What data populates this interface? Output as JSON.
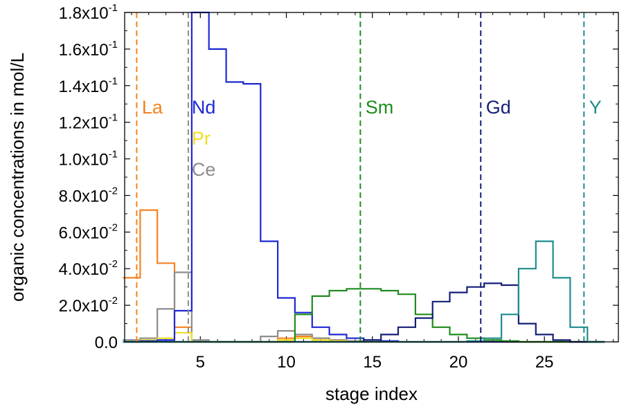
{
  "chart_data": {
    "type": "line",
    "step": true,
    "xlabel": "stage index",
    "ylabel": "organic concentrations in mol/L",
    "xlim": [
      0.6,
      29.3
    ],
    "ylim": [
      0,
      0.18
    ],
    "xticks": [
      5,
      10,
      15,
      20,
      25
    ],
    "yticks": [
      {
        "value": 0.0,
        "mantissa": "0.0",
        "exp": ""
      },
      {
        "value": 0.02,
        "mantissa": "2.0x10",
        "exp": "-2"
      },
      {
        "value": 0.04,
        "mantissa": "4.0x10",
        "exp": "-2"
      },
      {
        "value": 0.06,
        "mantissa": "6.0x10",
        "exp": "-2"
      },
      {
        "value": 0.08,
        "mantissa": "8.0x10",
        "exp": "-2"
      },
      {
        "value": 0.1,
        "mantissa": "1.0x10",
        "exp": "-1"
      },
      {
        "value": 0.12,
        "mantissa": "1.2x10",
        "exp": "-1"
      },
      {
        "value": 0.14,
        "mantissa": "1.4x10",
        "exp": "-1"
      },
      {
        "value": 0.16,
        "mantissa": "1.6x10",
        "exp": "-1"
      },
      {
        "value": 0.18,
        "mantissa": "1.8x10",
        "exp": "-1"
      }
    ],
    "series": [
      {
        "name": "La",
        "color": "#f58220",
        "values": [
          0.035,
          0.072,
          0.043,
          0.008,
          0,
          0,
          0,
          0,
          0,
          0.002,
          0.003,
          0.002,
          0.001,
          0.0005,
          0,
          0,
          0,
          0,
          0,
          0,
          0,
          0,
          0,
          0,
          0,
          0,
          0,
          0
        ]
      },
      {
        "name": "Ce",
        "color": "#8c8c8c",
        "values": [
          0.001,
          0.002,
          0.018,
          0.038,
          0.001,
          0,
          0,
          0,
          0.003,
          0.006,
          0.004,
          0.002,
          0.001,
          0.0005,
          0,
          0,
          0,
          0,
          0,
          0,
          0,
          0,
          0,
          0,
          0,
          0,
          0,
          0
        ]
      },
      {
        "name": "Pr",
        "color": "#f0dc1e",
        "values": [
          0,
          0.001,
          0.002,
          0.005,
          0,
          0,
          0,
          0,
          0,
          0.001,
          0.002,
          0.001,
          0.0005,
          0,
          0,
          0,
          0,
          0,
          0,
          0,
          0,
          0,
          0,
          0,
          0,
          0,
          0,
          0
        ]
      },
      {
        "name": "Nd",
        "color": "#1e28d2",
        "values": [
          0,
          0.0005,
          0.001,
          0.017,
          0.18,
          0.16,
          0.142,
          0.141,
          0.055,
          0.024,
          0.016,
          0.008,
          0.004,
          0.002,
          0.001,
          0.0005,
          0,
          0,
          0,
          0,
          0,
          0,
          0,
          0,
          0,
          0,
          0,
          0
        ]
      },
      {
        "name": "Sm",
        "color": "#1e8c1e",
        "values": [
          0,
          0,
          0,
          0,
          0,
          0,
          0,
          0,
          0,
          0,
          0.015,
          0.025,
          0.028,
          0.029,
          0.029,
          0.028,
          0.026,
          0.015,
          0.008,
          0.004,
          0.002,
          0.001,
          0.0005,
          0,
          0,
          0,
          0,
          0
        ]
      },
      {
        "name": "Gd",
        "color": "#141e78",
        "values": [
          0,
          0,
          0,
          0,
          0,
          0,
          0,
          0,
          0,
          0,
          0,
          0,
          0,
          0,
          0.001,
          0.004,
          0.008,
          0.013,
          0.022,
          0.027,
          0.03,
          0.032,
          0.031,
          0.01,
          0.004,
          0.001,
          0,
          0
        ]
      },
      {
        "name": "Y",
        "color": "#1e8c8c",
        "values": [
          0,
          0,
          0,
          0,
          0,
          0,
          0,
          0,
          0,
          0,
          0,
          0,
          0,
          0,
          0,
          0,
          0,
          0,
          0,
          0,
          0.0005,
          0.002,
          0.015,
          0.04,
          0.055,
          0.035,
          0.008,
          0
        ]
      }
    ],
    "stage_x": [
      1,
      2,
      3,
      4,
      5,
      6,
      7,
      8,
      9,
      10,
      11,
      12,
      13,
      14,
      15,
      16,
      17,
      18,
      19,
      20,
      21,
      22,
      23,
      24,
      25,
      26,
      27,
      28
    ],
    "markers": [
      {
        "name": "La",
        "x": 1.3,
        "color": "#f58220"
      },
      {
        "name": "Ce",
        "x": 4.3,
        "color": "#8c8c8c"
      },
      {
        "name": "Sm",
        "x": 14.3,
        "color": "#1e8c1e"
      },
      {
        "name": "Gd",
        "x": 21.3,
        "color": "#141e78"
      },
      {
        "name": "Y",
        "x": 27.3,
        "color": "#1e8c8c"
      }
    ],
    "annotations": [
      {
        "text": "La",
        "color": "#f58220",
        "x": 1.6,
        "y": 0.1285
      },
      {
        "text": "Nd",
        "color": "#1e28d2",
        "x": 4.5,
        "y": 0.1285
      },
      {
        "text": "Pr",
        "color": "#f0dc1e",
        "x": 4.5,
        "y": 0.1115
      },
      {
        "text": "Ce",
        "color": "#8c8c8c",
        "x": 4.5,
        "y": 0.0945
      },
      {
        "text": "Sm",
        "color": "#1e8c1e",
        "x": 14.6,
        "y": 0.1285
      },
      {
        "text": "Gd",
        "color": "#141e78",
        "x": 21.6,
        "y": 0.1285
      },
      {
        "text": "Y",
        "color": "#1e8c8c",
        "x": 27.6,
        "y": 0.1285
      }
    ]
  }
}
